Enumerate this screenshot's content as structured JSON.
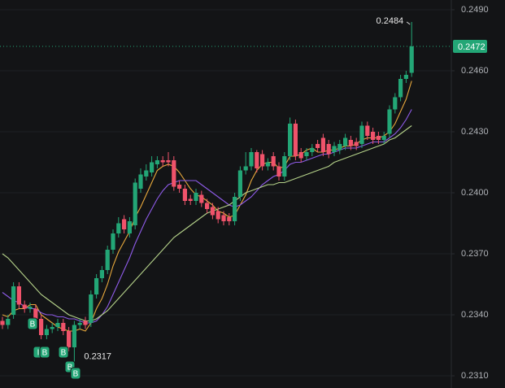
{
  "chart_data": {
    "type": "candlestick",
    "up_color": "#23a676",
    "down_color": "#f0536b",
    "ylim": [
      0.2304,
      0.24948
    ],
    "yticks": [
      {
        "value": 0.231,
        "label": "0.2310"
      },
      {
        "value": 0.234,
        "label": "0.2340"
      },
      {
        "value": 0.237,
        "label": "0.2370"
      },
      {
        "value": 0.24,
        "label": "0.2400"
      },
      {
        "value": 0.243,
        "label": "0.2430"
      },
      {
        "value": 0.246,
        "label": "0.2460"
      },
      {
        "value": 0.249,
        "label": "0.2490"
      }
    ],
    "grid": true,
    "open": [
      0.2337,
      0.2335,
      0.234,
      0.2354,
      0.2345,
      0.2343,
      0.2343,
      0.2338,
      0.233,
      0.2333,
      0.2334,
      0.2336,
      0.2332,
      0.2324,
      0.2335,
      0.2337,
      0.2336,
      0.235,
      0.2358,
      0.2362,
      0.2372,
      0.238,
      0.2387,
      0.238,
      0.2384,
      0.2402,
      0.2408,
      0.241,
      0.2414,
      0.2416,
      0.2416,
      0.2416,
      0.2404,
      0.2402,
      0.2397,
      0.2396,
      0.2399,
      0.2395,
      0.2393,
      0.2391,
      0.2389,
      0.2388,
      0.2386,
      0.2398,
      0.2411,
      0.2413,
      0.242,
      0.2419,
      0.2413,
      0.2418,
      0.2413,
      0.2408,
      0.2418,
      0.2434,
      0.242,
      0.2418,
      0.242,
      0.2424,
      0.2427,
      0.2424,
      0.242,
      0.2421,
      0.2423,
      0.2426,
      0.2425,
      0.2424,
      0.2433,
      0.243,
      0.2428,
      0.2426,
      0.2429,
      0.2441,
      0.2447,
      0.2456,
      0.2459
    ],
    "high": [
      0.2339,
      0.234,
      0.2356,
      0.2356,
      0.2347,
      0.2346,
      0.2345,
      0.234,
      0.2335,
      0.2336,
      0.2338,
      0.2338,
      0.2334,
      0.2337,
      0.2338,
      0.2339,
      0.2352,
      0.236,
      0.2364,
      0.2374,
      0.2382,
      0.2388,
      0.2389,
      0.2388,
      0.2407,
      0.2412,
      0.2414,
      0.2418,
      0.2418,
      0.2418,
      0.242,
      0.2418,
      0.2406,
      0.2404,
      0.2399,
      0.2402,
      0.2401,
      0.2397,
      0.2395,
      0.2393,
      0.2391,
      0.239,
      0.24,
      0.2413,
      0.242,
      0.2422,
      0.2421,
      0.2421,
      0.2417,
      0.242,
      0.2415,
      0.242,
      0.2437,
      0.2436,
      0.2422,
      0.2422,
      0.2424,
      0.2426,
      0.2429,
      0.2426,
      0.2425,
      0.2426,
      0.2429,
      0.2428,
      0.2427,
      0.2435,
      0.2435,
      0.2432,
      0.243,
      0.243,
      0.2443,
      0.2449,
      0.2458,
      0.246,
      0.2484
    ],
    "low": [
      0.2333,
      0.2333,
      0.2338,
      0.2343,
      0.2341,
      0.2341,
      0.2336,
      0.2328,
      0.2328,
      0.2331,
      0.2332,
      0.233,
      0.2322,
      0.2317,
      0.2333,
      0.2333,
      0.2334,
      0.2348,
      0.2356,
      0.236,
      0.237,
      0.2378,
      0.238,
      0.2378,
      0.2382,
      0.24,
      0.2406,
      0.2408,
      0.2412,
      0.2413,
      0.2413,
      0.2401,
      0.24,
      0.2394,
      0.2394,
      0.2394,
      0.2393,
      0.239,
      0.2387,
      0.2385,
      0.2384,
      0.2384,
      0.2384,
      0.2396,
      0.2409,
      0.2411,
      0.241,
      0.2411,
      0.2411,
      0.2411,
      0.2406,
      0.2406,
      0.2416,
      0.2416,
      0.2415,
      0.2416,
      0.2418,
      0.242,
      0.2418,
      0.2417,
      0.2418,
      0.2419,
      0.2421,
      0.2421,
      0.2421,
      0.2422,
      0.2426,
      0.2424,
      0.2424,
      0.2424,
      0.2427,
      0.2439,
      0.2445,
      0.2454,
      0.2457
    ],
    "close": [
      0.2335,
      0.2338,
      0.2354,
      0.2345,
      0.2343,
      0.2344,
      0.2338,
      0.233,
      0.2333,
      0.2334,
      0.2336,
      0.2332,
      0.2324,
      0.2335,
      0.2336,
      0.2335,
      0.235,
      0.2358,
      0.2362,
      0.2372,
      0.238,
      0.2385,
      0.2382,
      0.2386,
      0.2405,
      0.2409,
      0.2411,
      0.2415,
      0.2416,
      0.2415,
      0.2415,
      0.2403,
      0.2402,
      0.2396,
      0.2396,
      0.24,
      0.2395,
      0.2392,
      0.2389,
      0.2387,
      0.2386,
      0.2386,
      0.2398,
      0.2411,
      0.2413,
      0.242,
      0.2412,
      0.2413,
      0.2415,
      0.2413,
      0.2408,
      0.2418,
      0.2434,
      0.2418,
      0.2417,
      0.242,
      0.2422,
      0.2422,
      0.242,
      0.2419,
      0.2423,
      0.2424,
      0.2427,
      0.2423,
      0.2423,
      0.2433,
      0.2428,
      0.2426,
      0.2426,
      0.2428,
      0.2441,
      0.2447,
      0.2456,
      0.2458,
      0.2472
    ],
    "moving_averages": [
      {
        "color": "#e8a93c",
        "values": [
          0.234,
          0.2339,
          0.2342,
          0.2343,
          0.2343,
          0.2345,
          0.2345,
          0.234,
          0.2338,
          0.2336,
          0.2334,
          0.2333,
          0.2332,
          0.2332,
          0.2333,
          0.2332,
          0.2336,
          0.2343,
          0.2348,
          0.2355,
          0.2364,
          0.2371,
          0.2376,
          0.2381,
          0.2388,
          0.2393,
          0.2399,
          0.2405,
          0.2411,
          0.2413,
          0.2414,
          0.2413,
          0.241,
          0.2406,
          0.2402,
          0.2399,
          0.2398,
          0.2396,
          0.2394,
          0.2391,
          0.239,
          0.2388,
          0.2389,
          0.2394,
          0.2399,
          0.2406,
          0.2411,
          0.2414,
          0.2415,
          0.2415,
          0.2412,
          0.2413,
          0.2418,
          0.2418,
          0.2419,
          0.2421,
          0.2422,
          0.242,
          0.242,
          0.2421,
          0.2421,
          0.2422,
          0.2423,
          0.2423,
          0.2424,
          0.2426,
          0.2427,
          0.2427,
          0.2427,
          0.2428,
          0.243,
          0.2434,
          0.244,
          0.2446,
          0.2455
        ]
      },
      {
        "color": "#8e5be8",
        "values": [
          0.2351,
          0.2349,
          0.2347,
          0.2346,
          0.2344,
          0.2343,
          0.2343,
          0.2341,
          0.234,
          0.234,
          0.2339,
          0.2339,
          0.2338,
          0.2338,
          0.2337,
          0.2336,
          0.2336,
          0.2337,
          0.234,
          0.2344,
          0.235,
          0.2356,
          0.2362,
          0.2368,
          0.2375,
          0.2381,
          0.2387,
          0.2392,
          0.2397,
          0.2401,
          0.2404,
          0.2405,
          0.2406,
          0.2406,
          0.2406,
          0.2406,
          0.2404,
          0.2402,
          0.24,
          0.2398,
          0.2396,
          0.2394,
          0.2393,
          0.2394,
          0.2396,
          0.2398,
          0.2401,
          0.2404,
          0.2406,
          0.2408,
          0.2409,
          0.2411,
          0.2414,
          0.2415,
          0.2415,
          0.2416,
          0.2417,
          0.2418,
          0.2419,
          0.2419,
          0.242,
          0.2421,
          0.2422,
          0.2422,
          0.2422,
          0.2423,
          0.2424,
          0.2425,
          0.2425,
          0.2425,
          0.2427,
          0.2429,
          0.2432,
          0.2436,
          0.2441
        ]
      },
      {
        "color": "#b5d28a",
        "values": [
          0.237,
          0.2368,
          0.2365,
          0.2362,
          0.2359,
          0.2356,
          0.2353,
          0.235,
          0.2348,
          0.2346,
          0.2344,
          0.2342,
          0.234,
          0.2339,
          0.2338,
          0.2337,
          0.2337,
          0.2338,
          0.234,
          0.2342,
          0.2345,
          0.2348,
          0.2351,
          0.2354,
          0.2357,
          0.236,
          0.2363,
          0.2366,
          0.2369,
          0.2372,
          0.2375,
          0.2378,
          0.238,
          0.2382,
          0.2384,
          0.2386,
          0.2388,
          0.239,
          0.2391,
          0.2392,
          0.2393,
          0.2394,
          0.2396,
          0.2398,
          0.24,
          0.2401,
          0.2402,
          0.2403,
          0.2404,
          0.2404,
          0.2405,
          0.2405,
          0.2406,
          0.2407,
          0.2408,
          0.2409,
          0.241,
          0.2411,
          0.2412,
          0.2413,
          0.2415,
          0.2416,
          0.2417,
          0.2418,
          0.2419,
          0.242,
          0.2421,
          0.2422,
          0.2423,
          0.2424,
          0.2426,
          0.2427,
          0.2429,
          0.2431,
          0.2433
        ]
      }
    ],
    "max_label": 0.2484,
    "min_label": 0.2317,
    "last_price": 0.2472,
    "markers": [
      "B",
      "I",
      "B",
      "B",
      "B",
      "B"
    ]
  }
}
